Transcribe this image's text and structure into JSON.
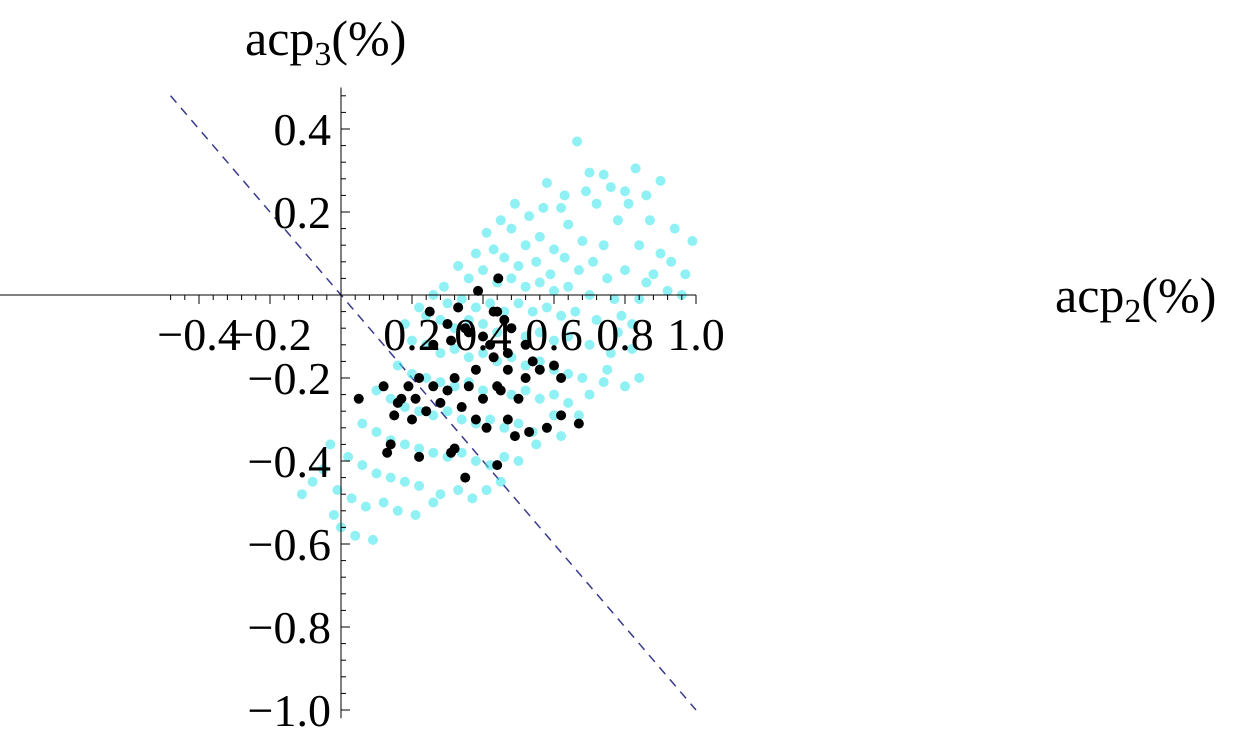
{
  "chart_data": {
    "type": "scatter",
    "xlabel": {
      "base": "acp",
      "sub": "2",
      "unit": "(%)"
    },
    "ylabel": {
      "base": "acp",
      "sub": "3",
      "unit": "(%)"
    },
    "xlim": [
      -0.48,
      1.0
    ],
    "ylim": [
      -1.02,
      0.5
    ],
    "x_ticks": [
      {
        "value": -0.4,
        "label": "−0.4"
      },
      {
        "value": -0.2,
        "label": "−0.2"
      },
      {
        "value": 0.2,
        "label": "0.2"
      },
      {
        "value": 0.4,
        "label": "0.4"
      },
      {
        "value": 0.6,
        "label": "0.6"
      },
      {
        "value": 0.8,
        "label": "0.8"
      },
      {
        "value": 1.0,
        "label": "1.0"
      }
    ],
    "y_ticks": [
      {
        "value": 0.4,
        "label": "0.4"
      },
      {
        "value": 0.2,
        "label": "0.2"
      },
      {
        "value": -0.2,
        "label": "−0.2"
      },
      {
        "value": -0.4,
        "label": "−0.4"
      },
      {
        "value": -0.6,
        "label": "−0.6"
      },
      {
        "value": -0.8,
        "label": "−0.8"
      },
      {
        "value": -1.0,
        "label": "−1.0"
      }
    ],
    "grid": false,
    "reference_line": {
      "style": "dashed",
      "color": "#3a3a8c",
      "slope": -1,
      "intercept": 0,
      "x_range": [
        -0.48,
        1.0
      ]
    },
    "series": [
      {
        "color": "#33e6ea",
        "opacity": 0.55,
        "points": [
          [
            0.665,
            0.37
          ],
          [
            0.7,
            0.295
          ],
          [
            0.74,
            0.29
          ],
          [
            0.83,
            0.305
          ],
          [
            0.9,
            0.275
          ],
          [
            0.58,
            0.27
          ],
          [
            0.8,
            0.25
          ],
          [
            0.86,
            0.24
          ],
          [
            0.94,
            0.16
          ],
          [
            0.99,
            0.13
          ],
          [
            0.62,
            0.21
          ],
          [
            0.72,
            0.22
          ],
          [
            0.78,
            0.18
          ],
          [
            0.48,
            0.16
          ],
          [
            0.52,
            0.12
          ],
          [
            0.56,
            0.14
          ],
          [
            0.6,
            0.11
          ],
          [
            0.64,
            0.17
          ],
          [
            0.68,
            0.13
          ],
          [
            0.74,
            0.12
          ],
          [
            0.84,
            0.12
          ],
          [
            0.9,
            0.1
          ],
          [
            0.97,
            0.05
          ],
          [
            0.43,
            0.11
          ],
          [
            0.46,
            0.09
          ],
          [
            0.5,
            0.07
          ],
          [
            0.55,
            0.08
          ],
          [
            0.59,
            0.05
          ],
          [
            0.63,
            0.09
          ],
          [
            0.67,
            0.06
          ],
          [
            0.71,
            0.08
          ],
          [
            0.75,
            0.04
          ],
          [
            0.8,
            0.06
          ],
          [
            0.86,
            0.03
          ],
          [
            0.92,
            0.01
          ],
          [
            0.36,
            0.04
          ],
          [
            0.4,
            0.06
          ],
          [
            0.44,
            0.03
          ],
          [
            0.48,
            0.04
          ],
          [
            0.52,
            0.02
          ],
          [
            0.56,
            0.03
          ],
          [
            0.6,
            0.01
          ],
          [
            0.64,
            0.02
          ],
          [
            0.7,
            0.0
          ],
          [
            0.77,
            -0.01
          ],
          [
            0.84,
            -0.01
          ],
          [
            0.3,
            -0.02
          ],
          [
            0.34,
            -0.01
          ],
          [
            0.38,
            -0.03
          ],
          [
            0.42,
            -0.02
          ],
          [
            0.46,
            -0.04
          ],
          [
            0.5,
            -0.02
          ],
          [
            0.54,
            -0.04
          ],
          [
            0.58,
            -0.03
          ],
          [
            0.62,
            -0.05
          ],
          [
            0.66,
            -0.04
          ],
          [
            0.72,
            -0.06
          ],
          [
            0.79,
            -0.05
          ],
          [
            0.24,
            -0.05
          ],
          [
            0.28,
            -0.06
          ],
          [
            0.32,
            -0.08
          ],
          [
            0.36,
            -0.06
          ],
          [
            0.4,
            -0.07
          ],
          [
            0.44,
            -0.09
          ],
          [
            0.48,
            -0.08
          ],
          [
            0.52,
            -0.1
          ],
          [
            0.56,
            -0.09
          ],
          [
            0.6,
            -0.11
          ],
          [
            0.64,
            -0.1
          ],
          [
            0.7,
            -0.12
          ],
          [
            0.76,
            -0.14
          ],
          [
            0.82,
            -0.13
          ],
          [
            0.2,
            -0.11
          ],
          [
            0.24,
            -0.12
          ],
          [
            0.28,
            -0.14
          ],
          [
            0.32,
            -0.13
          ],
          [
            0.36,
            -0.15
          ],
          [
            0.4,
            -0.14
          ],
          [
            0.44,
            -0.16
          ],
          [
            0.48,
            -0.15
          ],
          [
            0.52,
            -0.17
          ],
          [
            0.56,
            -0.16
          ],
          [
            0.6,
            -0.18
          ],
          [
            0.64,
            -0.19
          ],
          [
            0.68,
            -0.2
          ],
          [
            0.74,
            -0.21
          ],
          [
            0.8,
            -0.22
          ],
          [
            0.84,
            -0.2
          ],
          [
            0.16,
            -0.17
          ],
          [
            0.2,
            -0.19
          ],
          [
            0.24,
            -0.2
          ],
          [
            0.28,
            -0.21
          ],
          [
            0.32,
            -0.22
          ],
          [
            0.36,
            -0.21
          ],
          [
            0.4,
            -0.23
          ],
          [
            0.44,
            -0.22
          ],
          [
            0.48,
            -0.24
          ],
          [
            0.52,
            -0.23
          ],
          [
            0.56,
            -0.25
          ],
          [
            0.6,
            -0.24
          ],
          [
            0.64,
            -0.26
          ],
          [
            0.67,
            -0.29
          ],
          [
            0.1,
            -0.23
          ],
          [
            0.14,
            -0.25
          ],
          [
            0.18,
            -0.27
          ],
          [
            0.22,
            -0.28
          ],
          [
            0.26,
            -0.29
          ],
          [
            0.3,
            -0.28
          ],
          [
            0.34,
            -0.3
          ],
          [
            0.38,
            -0.31
          ],
          [
            0.42,
            -0.3
          ],
          [
            0.46,
            -0.32
          ],
          [
            0.5,
            -0.31
          ],
          [
            0.54,
            -0.33
          ],
          [
            0.58,
            -0.32
          ],
          [
            0.62,
            -0.34
          ],
          [
            0.06,
            -0.31
          ],
          [
            0.1,
            -0.33
          ],
          [
            0.14,
            -0.35
          ],
          [
            0.18,
            -0.36
          ],
          [
            0.22,
            -0.37
          ],
          [
            0.26,
            -0.38
          ],
          [
            0.3,
            -0.39
          ],
          [
            0.34,
            -0.38
          ],
          [
            0.38,
            -0.4
          ],
          [
            0.42,
            -0.41
          ],
          [
            0.46,
            -0.39
          ],
          [
            0.5,
            -0.4
          ],
          [
            0.02,
            -0.39
          ],
          [
            0.06,
            -0.41
          ],
          [
            0.1,
            -0.43
          ],
          [
            0.14,
            -0.44
          ],
          [
            0.18,
            -0.45
          ],
          [
            0.22,
            -0.46
          ],
          [
            0.28,
            -0.48
          ],
          [
            0.33,
            -0.47
          ],
          [
            0.37,
            -0.49
          ],
          [
            0.41,
            -0.47
          ],
          [
            -0.01,
            -0.47
          ],
          [
            0.03,
            -0.49
          ],
          [
            0.07,
            -0.51
          ],
          [
            0.12,
            -0.5
          ],
          [
            0.16,
            -0.52
          ],
          [
            0.21,
            -0.53
          ],
          [
            0.26,
            -0.5
          ],
          [
            -0.05,
            -0.42
          ],
          [
            -0.08,
            -0.45
          ],
          [
            -0.11,
            -0.48
          ],
          [
            -0.03,
            -0.36
          ],
          [
            0.0,
            -0.56
          ],
          [
            0.04,
            -0.58
          ],
          [
            0.09,
            -0.59
          ],
          [
            -0.02,
            -0.53
          ],
          [
            0.35,
            -0.44
          ],
          [
            0.45,
            -0.45
          ],
          [
            0.55,
            -0.36
          ],
          [
            0.6,
            -0.29
          ],
          [
            0.7,
            -0.24
          ],
          [
            0.75,
            -0.18
          ],
          [
            0.78,
            -0.09
          ],
          [
            0.82,
            -0.07
          ],
          [
            0.88,
            0.05
          ],
          [
            0.93,
            0.08
          ],
          [
            0.96,
            0.0
          ],
          [
            0.87,
            0.18
          ],
          [
            0.81,
            0.22
          ],
          [
            0.76,
            0.26
          ],
          [
            0.69,
            0.25
          ],
          [
            0.63,
            0.24
          ],
          [
            0.57,
            0.21
          ],
          [
            0.53,
            0.19
          ],
          [
            0.49,
            0.22
          ],
          [
            0.45,
            0.18
          ],
          [
            0.41,
            0.15
          ],
          [
            0.38,
            0.1
          ],
          [
            0.33,
            0.07
          ],
          [
            0.29,
            0.02
          ],
          [
            0.26,
            0.0
          ],
          [
            0.22,
            -0.03
          ],
          [
            0.18,
            -0.07
          ]
        ]
      },
      {
        "color": "#000000",
        "opacity": 1,
        "points": [
          [
            0.443,
            0.04
          ],
          [
            0.386,
            0.01
          ],
          [
            0.43,
            -0.04
          ],
          [
            0.44,
            -0.04
          ],
          [
            0.25,
            -0.04
          ],
          [
            0.33,
            -0.03
          ],
          [
            0.3,
            -0.07
          ],
          [
            0.35,
            -0.08
          ],
          [
            0.31,
            -0.11
          ],
          [
            0.26,
            -0.12
          ],
          [
            0.36,
            -0.09
          ],
          [
            0.4,
            -0.1
          ],
          [
            0.42,
            -0.12
          ],
          [
            0.46,
            -0.06
          ],
          [
            0.48,
            -0.08
          ],
          [
            0.47,
            -0.14
          ],
          [
            0.43,
            -0.15
          ],
          [
            0.52,
            -0.12
          ],
          [
            0.54,
            -0.16
          ],
          [
            0.56,
            -0.18
          ],
          [
            0.6,
            -0.17
          ],
          [
            0.62,
            -0.2
          ],
          [
            0.52,
            -0.2
          ],
          [
            0.47,
            -0.18
          ],
          [
            0.44,
            -0.22
          ],
          [
            0.38,
            -0.18
          ],
          [
            0.36,
            -0.22
          ],
          [
            0.32,
            -0.2
          ],
          [
            0.3,
            -0.23
          ],
          [
            0.26,
            -0.22
          ],
          [
            0.22,
            -0.2
          ],
          [
            0.19,
            -0.22
          ],
          [
            0.16,
            -0.26
          ],
          [
            0.15,
            -0.29
          ],
          [
            0.2,
            -0.3
          ],
          [
            0.24,
            -0.28
          ],
          [
            0.28,
            -0.26
          ],
          [
            0.34,
            -0.27
          ],
          [
            0.38,
            -0.3
          ],
          [
            0.41,
            -0.32
          ],
          [
            0.47,
            -0.3
          ],
          [
            0.49,
            -0.34
          ],
          [
            0.53,
            -0.33
          ],
          [
            0.44,
            -0.41
          ],
          [
            0.35,
            -0.44
          ],
          [
            0.31,
            -0.38
          ],
          [
            0.32,
            -0.37
          ],
          [
            0.22,
            -0.39
          ],
          [
            0.14,
            -0.36
          ],
          [
            0.13,
            -0.38
          ],
          [
            0.05,
            -0.25
          ],
          [
            0.12,
            -0.22
          ],
          [
            0.17,
            -0.25
          ],
          [
            0.21,
            -0.25
          ],
          [
            0.62,
            -0.29
          ],
          [
            0.67,
            -0.31
          ],
          [
            0.58,
            -0.32
          ],
          [
            0.5,
            -0.25
          ],
          [
            0.4,
            -0.25
          ],
          [
            0.45,
            -0.23
          ]
        ]
      }
    ]
  }
}
